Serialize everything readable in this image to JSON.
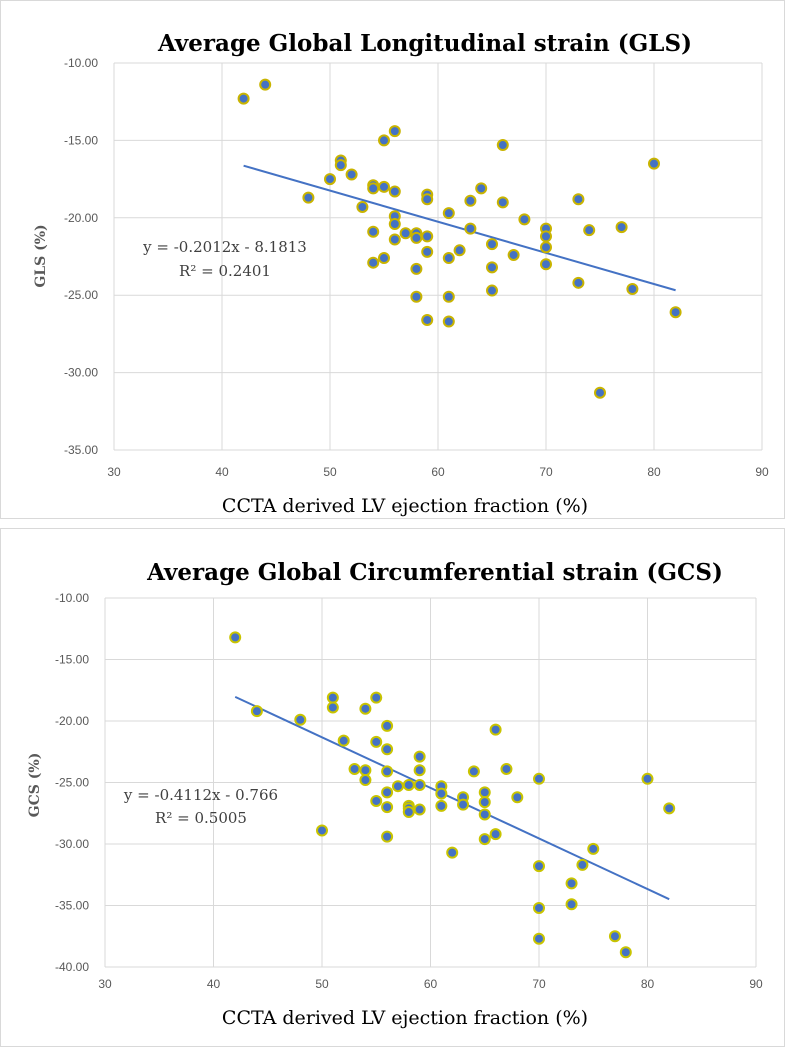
{
  "chart_data": [
    {
      "type": "scatter",
      "title": "Average Global Longitudinal strain (GLS)",
      "xlabel": "CCTA derived LV ejection fraction (%)",
      "ylabel": "GLS (%)",
      "xlim": [
        30,
        90
      ],
      "ylim": [
        -35,
        -10
      ],
      "x_ticks": [
        "30",
        "40",
        "50",
        "60",
        "70",
        "80",
        "90"
      ],
      "y_ticks": [
        "-10.00",
        "-15.00",
        "-20.00",
        "-25.00",
        "-30.00",
        "-35.00"
      ],
      "y_tick_values": [
        -10,
        -15,
        -20,
        -25,
        -30,
        -35
      ],
      "trendline": {
        "slope": -0.2012,
        "intercept": -8.1813,
        "x_range": [
          42,
          82
        ]
      },
      "equation": "y = -0.2012x - 8.1813",
      "r2": "R² = 0.2401",
      "point_color": "#4472c4",
      "edge_color": "#c9b400",
      "x": [
        42,
        44,
        48,
        50,
        51,
        51,
        52,
        53,
        54,
        54,
        54,
        54,
        55,
        55,
        55,
        56,
        56,
        56,
        56,
        56,
        57,
        58,
        58,
        58,
        58,
        59,
        59,
        59,
        59,
        59,
        61,
        61,
        61,
        61,
        62,
        63,
        63,
        64,
        65,
        65,
        65,
        66,
        66,
        67,
        68,
        70,
        70,
        70,
        70,
        73,
        73,
        74,
        75,
        77,
        78,
        80,
        82
      ],
      "y": [
        -12.3,
        -11.4,
        -18.7,
        -17.5,
        -16.3,
        -16.6,
        -17.2,
        -19.3,
        -17.9,
        -18.1,
        -20.9,
        -22.9,
        -15.0,
        -18.0,
        -22.6,
        -14.4,
        -18.3,
        -19.9,
        -20.4,
        -21.4,
        -21.0,
        -21.0,
        -21.3,
        -23.3,
        -25.1,
        -18.5,
        -18.8,
        -21.2,
        -22.2,
        -26.6,
        -19.7,
        -22.6,
        -25.1,
        -26.7,
        -22.1,
        -18.9,
        -20.7,
        -18.1,
        -21.7,
        -23.2,
        -24.7,
        -15.3,
        -19.0,
        -22.4,
        -20.1,
        -20.7,
        -21.2,
        -21.9,
        -23.0,
        -18.8,
        -24.2,
        -20.8,
        -31.3,
        -20.6,
        -24.6,
        -16.5,
        -26.1
      ]
    },
    {
      "type": "scatter",
      "title": "Average Global Circumferential strain (GCS)",
      "xlabel": "CCTA derived LV ejection fraction (%)",
      "ylabel": "GCS (%)",
      "xlim": [
        30,
        90
      ],
      "ylim": [
        -40,
        -10
      ],
      "x_ticks": [
        "30",
        "40",
        "50",
        "60",
        "70",
        "80",
        "90"
      ],
      "y_ticks": [
        "-10.00",
        "-15.00",
        "-20.00",
        "-25.00",
        "-30.00",
        "-35.00",
        "-40.00"
      ],
      "y_tick_values": [
        -10,
        -15,
        -20,
        -25,
        -30,
        -35,
        -40
      ],
      "trendline": {
        "slope": -0.4112,
        "intercept": -0.766,
        "x_range": [
          42,
          82
        ]
      },
      "equation": "y = -0.4112x - 0.766",
      "r2": "R² = 0.5005",
      "point_color": "#4472c4",
      "edge_color": "#c9c400",
      "x": [
        42,
        44,
        48,
        50,
        51,
        51,
        52,
        53,
        54,
        54,
        54,
        55,
        55,
        55,
        56,
        56,
        56,
        56,
        56,
        56,
        57,
        58,
        58,
        58,
        58,
        59,
        59,
        59,
        59,
        61,
        61,
        61,
        62,
        63,
        63,
        64,
        65,
        65,
        65,
        65,
        66,
        66,
        67,
        68,
        70,
        70,
        70,
        70,
        73,
        73,
        74,
        75,
        77,
        78,
        80,
        82
      ],
      "y": [
        -13.2,
        -19.2,
        -19.9,
        -28.9,
        -18.1,
        -18.9,
        -21.6,
        -23.9,
        -19.0,
        -24.0,
        -24.8,
        -18.1,
        -21.7,
        -26.5,
        -20.4,
        -22.3,
        -24.1,
        -25.8,
        -27.0,
        -29.4,
        -25.3,
        -25.2,
        -26.9,
        -27.1,
        -27.4,
        -22.9,
        -24.0,
        -25.2,
        -27.2,
        -25.3,
        -25.9,
        -26.9,
        -30.7,
        -26.2,
        -26.8,
        -24.1,
        -25.8,
        -26.6,
        -27.6,
        -29.6,
        -20.7,
        -29.2,
        -23.9,
        -26.2,
        -24.7,
        -31.8,
        -35.2,
        -37.7,
        -33.2,
        -34.9,
        -31.7,
        -30.4,
        -37.5,
        -38.8,
        -24.7,
        -27.1
      ]
    }
  ]
}
